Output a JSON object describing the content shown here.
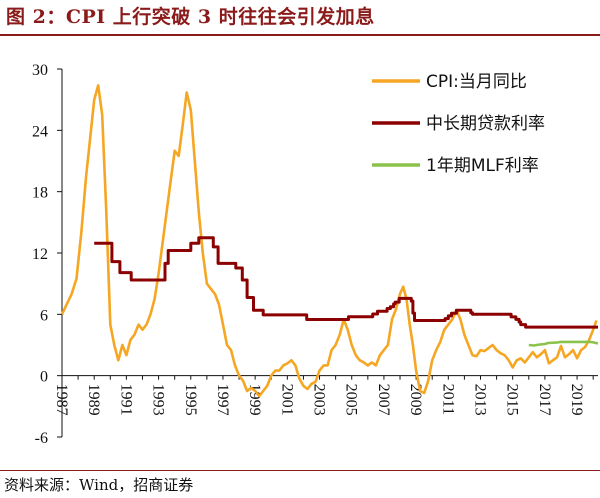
{
  "header": {
    "title": "图 2：CPI 上行突破 3 时往往会引发加息"
  },
  "footer": {
    "source": "资料来源：Wind，招商证券"
  },
  "chart_data": {
    "type": "line",
    "x_ticks": [
      "1987",
      "1989",
      "1991",
      "1993",
      "1995",
      "1997",
      "1999",
      "2001",
      "2003",
      "2005",
      "2007",
      "2009",
      "2011",
      "2013",
      "2015",
      "2017",
      "2019"
    ],
    "y_ticks": [
      30,
      24,
      18,
      12,
      6,
      0,
      -6
    ],
    "ylim": [
      -6,
      30
    ],
    "xlim": [
      1987.0,
      2020.3
    ],
    "legend_position": "top-right",
    "series": [
      {
        "name": "CPI:当月同比",
        "color": "#f5a623",
        "points": [
          [
            1987.0,
            6.0
          ],
          [
            1987.3,
            7.0
          ],
          [
            1987.6,
            8.0
          ],
          [
            1987.9,
            9.5
          ],
          [
            1988.2,
            14.0
          ],
          [
            1988.5,
            19.5
          ],
          [
            1988.8,
            24.0
          ],
          [
            1989.0,
            27.0
          ],
          [
            1989.25,
            28.4
          ],
          [
            1989.5,
            25.5
          ],
          [
            1989.75,
            16.0
          ],
          [
            1990.0,
            5.0
          ],
          [
            1990.25,
            3.0
          ],
          [
            1990.5,
            1.5
          ],
          [
            1990.75,
            3.0
          ],
          [
            1991.0,
            2.0
          ],
          [
            1991.25,
            3.5
          ],
          [
            1991.5,
            4.0
          ],
          [
            1991.75,
            5.0
          ],
          [
            1992.0,
            4.5
          ],
          [
            1992.25,
            5.0
          ],
          [
            1992.5,
            6.0
          ],
          [
            1992.75,
            7.5
          ],
          [
            1993.0,
            10.0
          ],
          [
            1993.25,
            13.0
          ],
          [
            1993.5,
            16.0
          ],
          [
            1993.75,
            19.0
          ],
          [
            1994.0,
            22.0
          ],
          [
            1994.25,
            21.5
          ],
          [
            1994.5,
            24.5
          ],
          [
            1994.75,
            27.7
          ],
          [
            1995.0,
            26.0
          ],
          [
            1995.25,
            21.0
          ],
          [
            1995.5,
            16.0
          ],
          [
            1995.75,
            12.0
          ],
          [
            1996.0,
            9.0
          ],
          [
            1996.25,
            8.5
          ],
          [
            1996.5,
            8.0
          ],
          [
            1996.75,
            7.0
          ],
          [
            1997.0,
            5.0
          ],
          [
            1997.25,
            3.0
          ],
          [
            1997.5,
            2.5
          ],
          [
            1997.75,
            1.0
          ],
          [
            1998.0,
            0.0
          ],
          [
            1998.25,
            -0.5
          ],
          [
            1998.5,
            -1.5
          ],
          [
            1998.75,
            -1.2
          ],
          [
            1999.0,
            -1.5
          ],
          [
            1999.25,
            -2.0
          ],
          [
            1999.5,
            -1.5
          ],
          [
            1999.75,
            -1.0
          ],
          [
            2000.0,
            0.0
          ],
          [
            2000.25,
            0.5
          ],
          [
            2000.5,
            0.5
          ],
          [
            2000.75,
            1.0
          ],
          [
            2001.0,
            1.2
          ],
          [
            2001.25,
            1.5
          ],
          [
            2001.5,
            1.0
          ],
          [
            2001.75,
            -0.3
          ],
          [
            2002.0,
            -1.0
          ],
          [
            2002.25,
            -1.3
          ],
          [
            2002.5,
            -0.8
          ],
          [
            2002.75,
            -0.6
          ],
          [
            2003.0,
            0.5
          ],
          [
            2003.25,
            1.0
          ],
          [
            2003.5,
            1.0
          ],
          [
            2003.75,
            2.5
          ],
          [
            2004.0,
            3.0
          ],
          [
            2004.25,
            4.0
          ],
          [
            2004.5,
            5.5
          ],
          [
            2004.75,
            4.5
          ],
          [
            2005.0,
            3.0
          ],
          [
            2005.25,
            2.0
          ],
          [
            2005.5,
            1.5
          ],
          [
            2005.75,
            1.3
          ],
          [
            2006.0,
            1.0
          ],
          [
            2006.25,
            1.3
          ],
          [
            2006.5,
            1.0
          ],
          [
            2006.75,
            2.0
          ],
          [
            2007.0,
            2.5
          ],
          [
            2007.25,
            3.0
          ],
          [
            2007.5,
            5.5
          ],
          [
            2007.75,
            6.5
          ],
          [
            2008.0,
            8.0
          ],
          [
            2008.2,
            8.7
          ],
          [
            2008.4,
            7.5
          ],
          [
            2008.6,
            5.0
          ],
          [
            2008.8,
            3.0
          ],
          [
            2009.0,
            0.5
          ],
          [
            2009.25,
            -1.5
          ],
          [
            2009.5,
            -1.7
          ],
          [
            2009.75,
            -0.5
          ],
          [
            2010.0,
            1.5
          ],
          [
            2010.25,
            2.5
          ],
          [
            2010.5,
            3.3
          ],
          [
            2010.75,
            4.5
          ],
          [
            2011.0,
            5.0
          ],
          [
            2011.25,
            5.5
          ],
          [
            2011.5,
            6.4
          ],
          [
            2011.75,
            5.5
          ],
          [
            2012.0,
            4.0
          ],
          [
            2012.25,
            3.0
          ],
          [
            2012.5,
            2.0
          ],
          [
            2012.75,
            1.9
          ],
          [
            2013.0,
            2.5
          ],
          [
            2013.25,
            2.4
          ],
          [
            2013.5,
            2.7
          ],
          [
            2013.75,
            3.0
          ],
          [
            2014.0,
            2.5
          ],
          [
            2014.25,
            2.2
          ],
          [
            2014.5,
            2.0
          ],
          [
            2014.75,
            1.5
          ],
          [
            2015.0,
            0.8
          ],
          [
            2015.25,
            1.5
          ],
          [
            2015.5,
            1.7
          ],
          [
            2015.75,
            1.3
          ],
          [
            2016.0,
            1.8
          ],
          [
            2016.25,
            2.3
          ],
          [
            2016.5,
            1.8
          ],
          [
            2016.75,
            2.1
          ],
          [
            2017.0,
            2.5
          ],
          [
            2017.25,
            1.2
          ],
          [
            2017.5,
            1.5
          ],
          [
            2017.75,
            1.8
          ],
          [
            2018.0,
            2.9
          ],
          [
            2018.25,
            1.8
          ],
          [
            2018.5,
            2.1
          ],
          [
            2018.75,
            2.5
          ],
          [
            2019.0,
            1.7
          ],
          [
            2019.25,
            2.5
          ],
          [
            2019.5,
            2.8
          ],
          [
            2019.75,
            3.5
          ],
          [
            2020.0,
            4.5
          ],
          [
            2020.2,
            5.4
          ]
        ]
      },
      {
        "name": "中长期贷款利率",
        "color": "#8b0000",
        "points": [
          [
            1989.0,
            12.96
          ],
          [
            1990.1,
            12.96
          ],
          [
            1990.1,
            11.16
          ],
          [
            1990.6,
            11.16
          ],
          [
            1990.6,
            10.08
          ],
          [
            1991.3,
            10.08
          ],
          [
            1991.3,
            9.36
          ],
          [
            1993.4,
            9.36
          ],
          [
            1993.4,
            10.98
          ],
          [
            1993.6,
            10.98
          ],
          [
            1993.6,
            12.24
          ],
          [
            1995.0,
            12.24
          ],
          [
            1995.0,
            12.96
          ],
          [
            1995.5,
            12.96
          ],
          [
            1995.5,
            13.5
          ],
          [
            1996.4,
            13.5
          ],
          [
            1996.4,
            12.6
          ],
          [
            1996.7,
            12.6
          ],
          [
            1996.7,
            10.98
          ],
          [
            1997.8,
            10.98
          ],
          [
            1997.8,
            10.53
          ],
          [
            1998.2,
            10.53
          ],
          [
            1998.2,
            9.36
          ],
          [
            1998.5,
            9.36
          ],
          [
            1998.5,
            7.65
          ],
          [
            1998.9,
            7.65
          ],
          [
            1998.9,
            6.39
          ],
          [
            1999.5,
            6.39
          ],
          [
            1999.5,
            5.94
          ],
          [
            2002.2,
            5.94
          ],
          [
            2002.2,
            5.49
          ],
          [
            2004.8,
            5.49
          ],
          [
            2004.8,
            5.76
          ],
          [
            2006.3,
            5.76
          ],
          [
            2006.3,
            6.03
          ],
          [
            2006.6,
            6.03
          ],
          [
            2006.6,
            6.3
          ],
          [
            2007.2,
            6.3
          ],
          [
            2007.2,
            6.57
          ],
          [
            2007.4,
            6.57
          ],
          [
            2007.4,
            6.75
          ],
          [
            2007.6,
            6.75
          ],
          [
            2007.6,
            7.02
          ],
          [
            2007.7,
            7.02
          ],
          [
            2007.7,
            7.2
          ],
          [
            2007.95,
            7.2
          ],
          [
            2007.95,
            7.56
          ],
          [
            2008.7,
            7.56
          ],
          [
            2008.7,
            7.29
          ],
          [
            2008.8,
            7.29
          ],
          [
            2008.8,
            6.12
          ],
          [
            2008.9,
            6.12
          ],
          [
            2008.9,
            5.4
          ],
          [
            2010.8,
            5.4
          ],
          [
            2010.8,
            5.58
          ],
          [
            2011.0,
            5.58
          ],
          [
            2011.0,
            5.85
          ],
          [
            2011.2,
            5.85
          ],
          [
            2011.2,
            6.1
          ],
          [
            2011.5,
            6.1
          ],
          [
            2011.5,
            6.4
          ],
          [
            2012.4,
            6.4
          ],
          [
            2012.4,
            6.15
          ],
          [
            2012.5,
            6.15
          ],
          [
            2012.5,
            6.0
          ],
          [
            2014.9,
            6.0
          ],
          [
            2014.9,
            5.75
          ],
          [
            2015.2,
            5.75
          ],
          [
            2015.2,
            5.5
          ],
          [
            2015.4,
            5.5
          ],
          [
            2015.4,
            5.25
          ],
          [
            2015.5,
            5.25
          ],
          [
            2015.5,
            5.0
          ],
          [
            2015.8,
            5.0
          ],
          [
            2015.8,
            4.75
          ],
          [
            2020.3,
            4.75
          ]
        ]
      },
      {
        "name": "1年期MLF利率",
        "color": "#8bc34a",
        "points": [
          [
            2016.0,
            3.0
          ],
          [
            2016.3,
            2.95
          ],
          [
            2016.7,
            3.05
          ],
          [
            2017.0,
            3.1
          ],
          [
            2017.2,
            3.2
          ],
          [
            2017.8,
            3.25
          ],
          [
            2018.0,
            3.3
          ],
          [
            2019.0,
            3.3
          ],
          [
            2019.8,
            3.3
          ],
          [
            2020.0,
            3.25
          ],
          [
            2020.3,
            3.15
          ]
        ]
      }
    ]
  }
}
